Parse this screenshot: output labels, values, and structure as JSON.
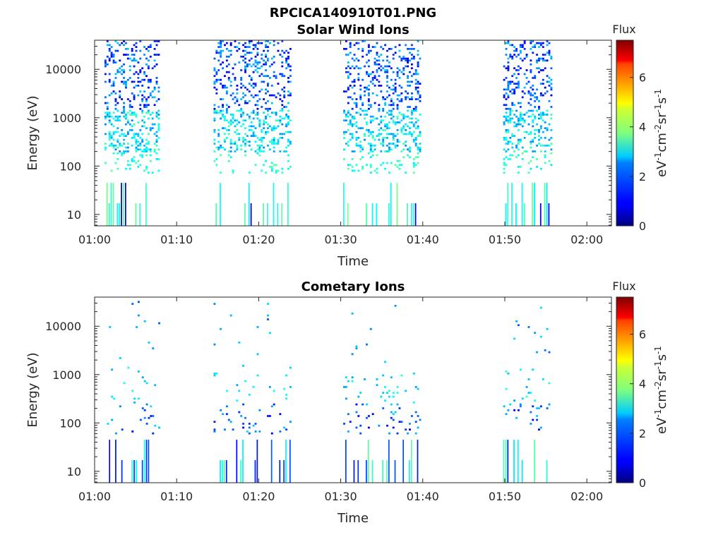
{
  "figure": {
    "title": "RPCICA140910T01.PNG"
  },
  "chart_data": [
    {
      "type": "heatmap",
      "title": "Solar Wind Ions",
      "xlabel": "Time",
      "ylabel": "Energy (eV)",
      "x_ticks": [
        "01:00",
        "01:10",
        "01:20",
        "01:30",
        "01:40",
        "01:50",
        "02:00"
      ],
      "xlim_minutes": [
        0,
        63
      ],
      "y_scale": "log",
      "y_ticks": [
        "10",
        "100",
        "1000",
        "10000"
      ],
      "ylim": [
        5.8,
        40000
      ],
      "colorbar": {
        "title": "Flux",
        "label": "eV-1cm-2sr-1s-1",
        "ticks": [
          "0",
          "2",
          "4",
          "6"
        ],
        "range": [
          0,
          7.5
        ],
        "colormap": "jet"
      },
      "grid": false,
      "data_spans_minutes": [
        [
          1.2,
          7.8
        ],
        [
          14.5,
          23.8
        ],
        [
          30.3,
          39.6
        ],
        [
          49.8,
          55.8
        ]
      ],
      "description_levels": {
        "high_energy": "sparse blue/dark-blue points 1000-40000 eV",
        "mid_energy": "cyan/light-blue points ~100-1000 eV",
        "low_energy": "vertical cyan/green/blue streaks at ~10-40 eV"
      }
    },
    {
      "type": "heatmap",
      "title": "Cometary Ions",
      "xlabel": "Time",
      "ylabel": "Energy (eV)",
      "x_ticks": [
        "01:00",
        "01:10",
        "01:20",
        "01:30",
        "01:40",
        "01:50",
        "02:00"
      ],
      "xlim_minutes": [
        0,
        63
      ],
      "y_scale": "log",
      "y_ticks": [
        "10",
        "100",
        "1000",
        "10000"
      ],
      "ylim": [
        5.8,
        40000
      ],
      "colorbar": {
        "title": "Flux",
        "label": "eV-1cm-2sr-1s-1",
        "ticks": [
          "0",
          "2",
          "4",
          "6"
        ],
        "range": [
          0,
          7.5
        ],
        "colormap": "jet"
      },
      "grid": false,
      "data_spans_minutes": [
        [
          1.5,
          7.8
        ],
        [
          14.5,
          23.8
        ],
        [
          30.3,
          39.6
        ],
        [
          49.8,
          55.5
        ]
      ],
      "description_levels": {
        "high_energy": "very sparse blue points 1000-30000 eV",
        "mid_energy": "dark blue / blue streaks ~60-200 eV",
        "low_energy": "blue / green / cyan streaks at ~10-40 eV"
      }
    }
  ]
}
